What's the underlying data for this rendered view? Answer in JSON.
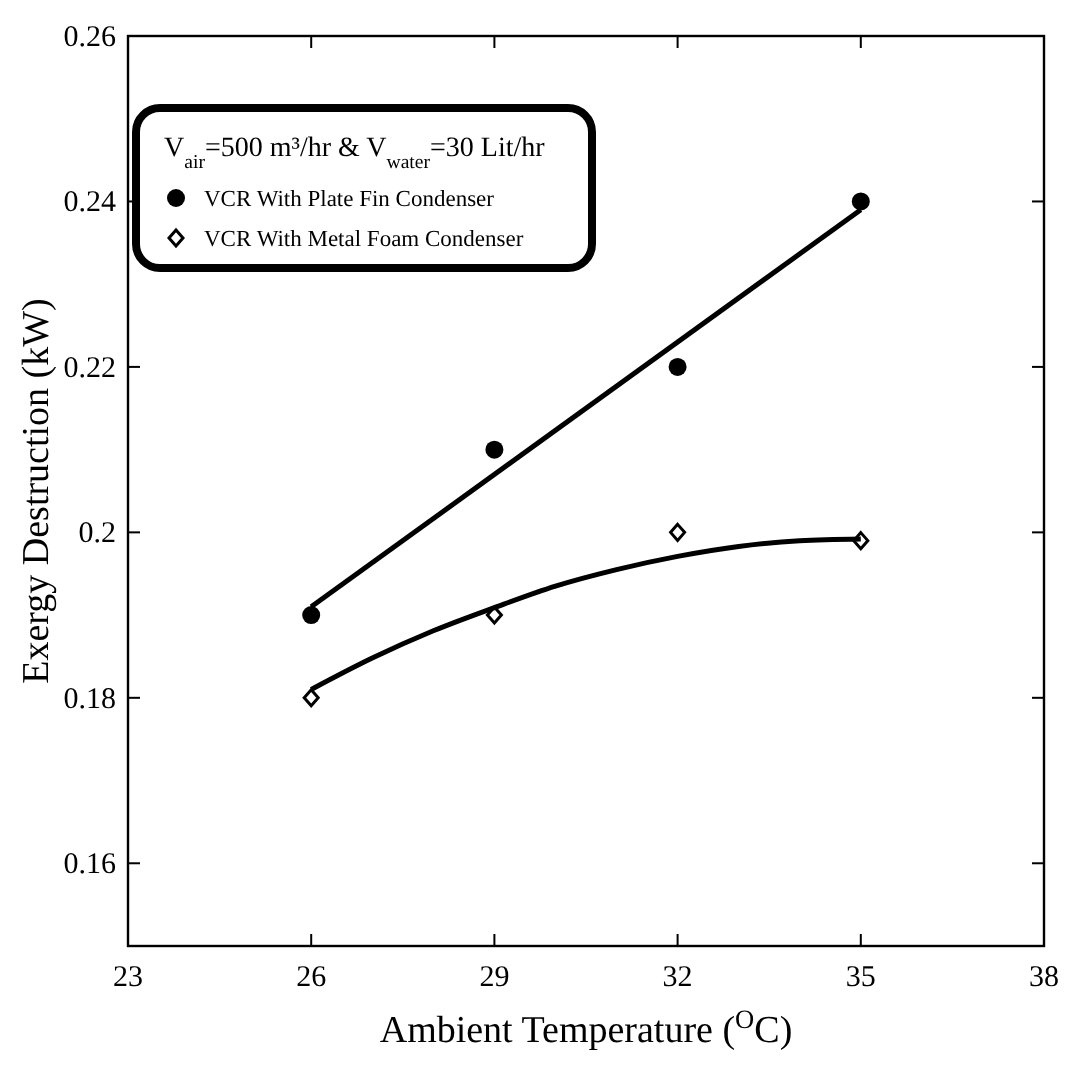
{
  "chart_data": {
    "type": "scatter",
    "xlabel": "Ambient Temperature ($^{O}$C)",
    "ylabel": "Exergy Destruction (kW)",
    "legend_title": "V$_{air}$=500 m³/hr & V$_{water}$=30 Lit/hr",
    "xlim": [
      23,
      38
    ],
    "xticks": [
      23,
      26,
      29,
      32,
      35,
      38
    ],
    "ylim": [
      0.15,
      0.26
    ],
    "yticks": [
      0.16,
      0.18,
      0.2,
      0.22,
      0.24,
      0.26
    ],
    "grid": false,
    "legend": "top left",
    "series": [
      {
        "name": "VCR With Plate Fin Condenser",
        "marker": "circle",
        "color": "#000000",
        "x": [
          26,
          29,
          32,
          35
        ],
        "values": [
          0.19,
          0.21,
          0.22,
          0.24
        ]
      },
      {
        "name": "VCR With Metal Foam Condenser",
        "marker": "diamond",
        "color": "#000000",
        "x": [
          26,
          29,
          32,
          35
        ],
        "values": [
          0.18,
          0.19,
          0.2,
          0.199
        ]
      },
      {
        "type": "line",
        "color": "#000000",
        "x": [
          26,
          35
        ],
        "values": [
          0.191,
          0.239
        ]
      },
      {
        "type": "line",
        "color": "#000000",
        "x": [
          26,
          27,
          28,
          29,
          30,
          31,
          32,
          33,
          34,
          35
        ],
        "values": [
          0.181,
          0.1848,
          0.1881,
          0.1909,
          0.1935,
          0.1955,
          0.1971,
          0.1983,
          0.199,
          0.1992
        ]
      }
    ]
  }
}
